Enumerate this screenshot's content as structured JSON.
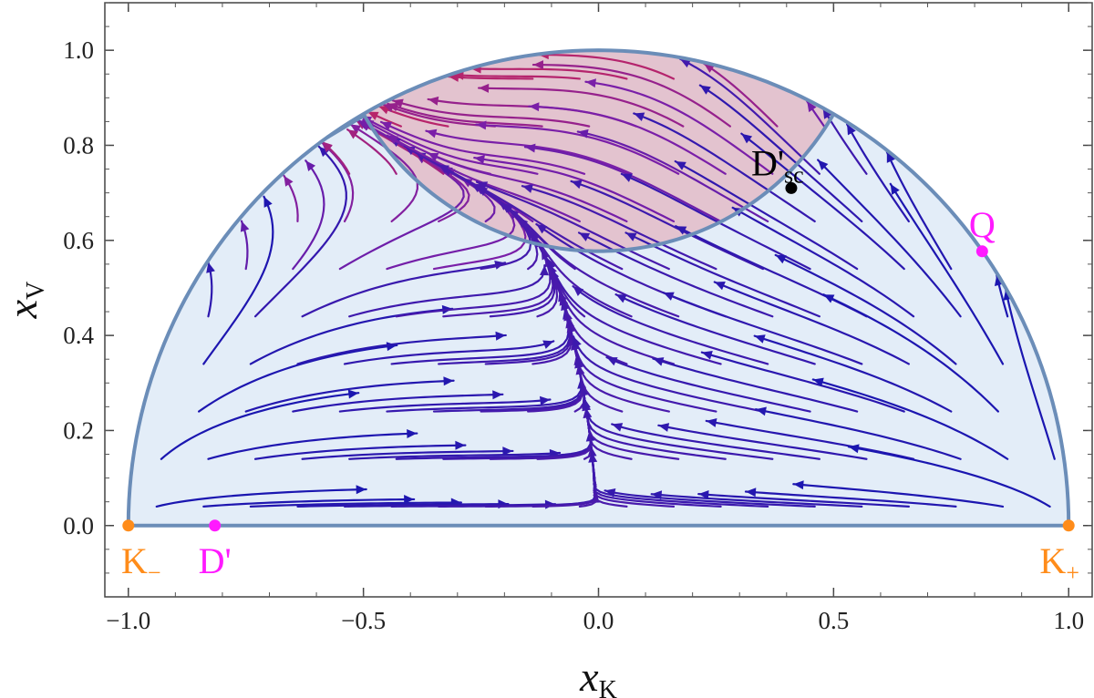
{
  "chart_data": {
    "type": "stream",
    "xlabel": {
      "main": "x",
      "sub": "K"
    },
    "ylabel": {
      "main": "x",
      "sub": "V"
    },
    "xlim": [
      -1.05,
      1.05
    ],
    "ylim": [
      -0.15,
      1.1
    ],
    "x_ticks": [
      -1.0,
      -0.5,
      0.0,
      0.5,
      1.0
    ],
    "x_tick_labels": [
      "−1.0",
      "−0.5",
      "0.0",
      "0.5",
      "1.0"
    ],
    "y_ticks": [
      0.0,
      0.2,
      0.4,
      0.6,
      0.8,
      1.0
    ],
    "y_tick_labels": [
      "0.0",
      "0.2",
      "0.4",
      "0.6",
      "0.8",
      "1.0"
    ],
    "grid": false,
    "regions": [
      {
        "name": "semicircle x_K^2 + x_V^2 <= 1, x_V >= 0",
        "color": "#e3edf8"
      },
      {
        "name": "region above inner circle x_K^2 + (x_V - 1.155)^2 <= 0.333",
        "color": "#e3c3cf"
      }
    ],
    "boundary_color": "#6b8db8",
    "points": [
      {
        "label": "K",
        "sub": "−",
        "x": -1.0,
        "y": 0.0,
        "color": "#ff8c1a",
        "label_pos": "below"
      },
      {
        "label": "D'",
        "sub": "",
        "x": -0.816,
        "y": 0.0,
        "color": "#ff1aff",
        "label_pos": "below"
      },
      {
        "label": "K",
        "sub": "+",
        "x": 1.0,
        "y": 0.0,
        "color": "#ff8c1a",
        "label_pos": "below"
      },
      {
        "label": "D'",
        "sub": "sc",
        "x": 0.41,
        "y": 0.71,
        "color": "#000000",
        "label_pos": "above-left"
      },
      {
        "label": "Q",
        "sub": "",
        "x": 0.816,
        "y": 0.577,
        "color": "#ff1aff",
        "label_pos": "above"
      }
    ],
    "streamline_colors": [
      "#1a16b0",
      "#7a1fa8",
      "#b8246a"
    ]
  }
}
